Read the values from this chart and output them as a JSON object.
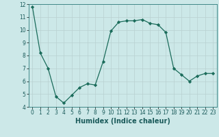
{
  "x": [
    0,
    1,
    2,
    3,
    4,
    5,
    6,
    7,
    8,
    9,
    10,
    11,
    12,
    13,
    14,
    15,
    16,
    17,
    18,
    19,
    20,
    21,
    22,
    23
  ],
  "y": [
    11.8,
    8.2,
    7.0,
    4.8,
    4.3,
    4.9,
    5.5,
    5.8,
    5.7,
    7.5,
    9.9,
    10.6,
    10.7,
    10.7,
    10.8,
    10.5,
    10.4,
    9.8,
    7.0,
    6.5,
    6.0,
    6.4,
    6.6,
    6.6
  ],
  "line_color": "#1a6b5a",
  "marker": "D",
  "marker_size": 2.2,
  "bg_color": "#cce8e8",
  "grid_color": "#b8d0d0",
  "xlabel": "Humidex (Indice chaleur)",
  "xlim": [
    -0.5,
    23.5
  ],
  "ylim": [
    4,
    12
  ],
  "yticks": [
    4,
    5,
    6,
    7,
    8,
    9,
    10,
    11,
    12
  ],
  "xticks": [
    0,
    1,
    2,
    3,
    4,
    5,
    6,
    7,
    8,
    9,
    10,
    11,
    12,
    13,
    14,
    15,
    16,
    17,
    18,
    19,
    20,
    21,
    22,
    23
  ]
}
